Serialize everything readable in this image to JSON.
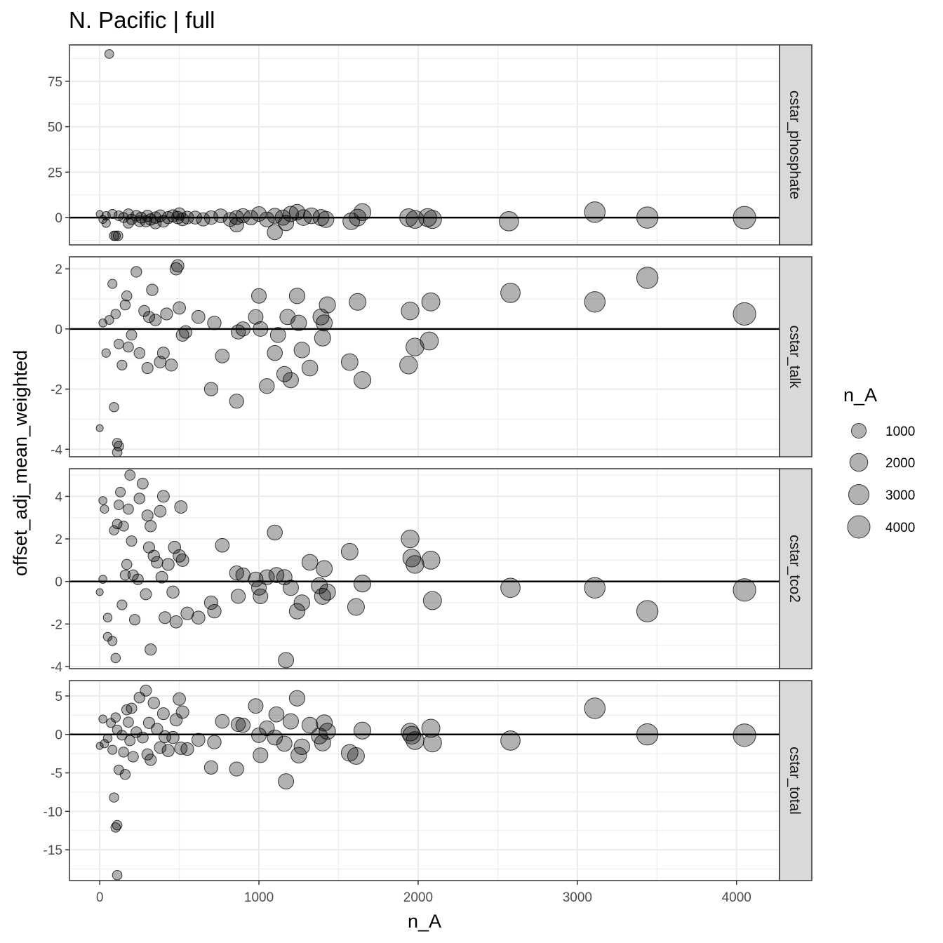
{
  "chart_data": {
    "type": "scatter",
    "title": "N. Pacific | full",
    "xlabel": "n_A",
    "ylabel": "offset_adj_mean_weighted",
    "xlim": [
      -190,
      4270
    ],
    "x_ticks": [
      0,
      1000,
      2000,
      3000,
      4000
    ],
    "grid": true,
    "size_variable": "n_A",
    "point_color": "#000000",
    "point_opacity": 0.3,
    "reference_line_y": 0,
    "legend": {
      "title": "n_A",
      "position": "right",
      "values": [
        1000,
        2000,
        3000,
        4000
      ]
    },
    "panels": [
      {
        "name": "cstar_phosphate",
        "ylim": [
          -15,
          95
        ],
        "y_ticks": [
          0,
          25,
          50,
          75
        ],
        "points": [
          [
            60,
            90
          ],
          [
            0,
            2
          ],
          [
            20,
            -1
          ],
          [
            40,
            1
          ],
          [
            80,
            2
          ],
          [
            120,
            1
          ],
          [
            150,
            0
          ],
          [
            180,
            2
          ],
          [
            200,
            -1
          ],
          [
            230,
            1
          ],
          [
            260,
            0
          ],
          [
            290,
            -2
          ],
          [
            300,
            1
          ],
          [
            320,
            -1
          ],
          [
            350,
            0
          ],
          [
            380,
            1
          ],
          [
            400,
            -2
          ],
          [
            430,
            0
          ],
          [
            460,
            1
          ],
          [
            490,
            0
          ],
          [
            500,
            2
          ],
          [
            520,
            -1
          ],
          [
            550,
            0
          ],
          [
            600,
            0
          ],
          [
            650,
            -1
          ],
          [
            700,
            0
          ],
          [
            760,
            1
          ],
          [
            820,
            -1
          ],
          [
            860,
            0
          ],
          [
            900,
            1
          ],
          [
            950,
            0
          ],
          [
            1000,
            2
          ],
          [
            1050,
            -1
          ],
          [
            1100,
            1
          ],
          [
            1150,
            0
          ],
          [
            1200,
            2
          ],
          [
            1240,
            3
          ],
          [
            1280,
            0
          ],
          [
            1330,
            1
          ],
          [
            1390,
            0
          ],
          [
            1420,
            -1
          ],
          [
            1580,
            -2
          ],
          [
            1620,
            0
          ],
          [
            1650,
            3
          ],
          [
            1940,
            0
          ],
          [
            1980,
            -1
          ],
          [
            2060,
            0
          ],
          [
            2090,
            -1
          ],
          [
            2570,
            -2
          ],
          [
            3110,
            3
          ],
          [
            3440,
            0
          ],
          [
            4050,
            0
          ],
          [
            100,
            -10
          ],
          [
            115,
            -10
          ],
          [
            90,
            -10
          ],
          [
            860,
            -4
          ],
          [
            1100,
            -8
          ],
          [
            1170,
            -3
          ],
          [
            40,
            -3
          ],
          [
            180,
            -3
          ],
          [
            250,
            -2
          ],
          [
            350,
            -3
          ]
        ]
      },
      {
        "name": "cstar_talk",
        "ylim": [
          -4.25,
          2.4
        ],
        "y_ticks": [
          -4,
          -2,
          0,
          2
        ],
        "points": [
          [
            0,
            -3.3
          ],
          [
            110,
            -3.8
          ],
          [
            120,
            -3.9
          ],
          [
            110,
            -4.1
          ],
          [
            90,
            -2.6
          ],
          [
            20,
            0.2
          ],
          [
            40,
            -0.8
          ],
          [
            60,
            0.3
          ],
          [
            80,
            1.5
          ],
          [
            100,
            0.5
          ],
          [
            120,
            -0.5
          ],
          [
            140,
            -1.2
          ],
          [
            160,
            0.8
          ],
          [
            170,
            1.1
          ],
          [
            180,
            -0.6
          ],
          [
            200,
            -0.2
          ],
          [
            230,
            1.9
          ],
          [
            250,
            -0.8
          ],
          [
            280,
            0.6
          ],
          [
            300,
            -1.3
          ],
          [
            310,
            0.4
          ],
          [
            330,
            1.3
          ],
          [
            350,
            0.3
          ],
          [
            380,
            -1.1
          ],
          [
            400,
            -0.8
          ],
          [
            420,
            0.5
          ],
          [
            450,
            -1.2
          ],
          [
            480,
            2.0
          ],
          [
            490,
            2.1
          ],
          [
            500,
            0.7
          ],
          [
            520,
            -0.2
          ],
          [
            540,
            -0.1
          ],
          [
            620,
            0.4
          ],
          [
            700,
            -2.0
          ],
          [
            720,
            0.2
          ],
          [
            770,
            -0.9
          ],
          [
            860,
            -2.4
          ],
          [
            870,
            -0.1
          ],
          [
            900,
            0.0
          ],
          [
            980,
            0.4
          ],
          [
            1000,
            1.1
          ],
          [
            1010,
            0.0
          ],
          [
            1050,
            -1.9
          ],
          [
            1100,
            -0.8
          ],
          [
            1120,
            -0.2
          ],
          [
            1160,
            -1.5
          ],
          [
            1180,
            0.4
          ],
          [
            1200,
            -1.7
          ],
          [
            1240,
            1.1
          ],
          [
            1250,
            0.2
          ],
          [
            1270,
            -0.7
          ],
          [
            1320,
            -1.3
          ],
          [
            1390,
            0.4
          ],
          [
            1400,
            -0.3
          ],
          [
            1410,
            0.2
          ],
          [
            1430,
            0.8
          ],
          [
            1570,
            -1.1
          ],
          [
            1620,
            0.9
          ],
          [
            1650,
            -1.7
          ],
          [
            1950,
            0.6
          ],
          [
            1940,
            -1.2
          ],
          [
            1980,
            -0.6
          ],
          [
            2080,
            0.9
          ],
          [
            2070,
            -0.4
          ],
          [
            2580,
            1.2
          ],
          [
            3110,
            0.9
          ],
          [
            3440,
            1.7
          ],
          [
            4050,
            0.5
          ]
        ]
      },
      {
        "name": "cstar_tco2",
        "ylim": [
          -4.1,
          5.3
        ],
        "y_ticks": [
          -4,
          -2,
          0,
          2,
          4
        ],
        "points": [
          [
            0,
            -0.5
          ],
          [
            20,
            3.8
          ],
          [
            30,
            3.4
          ],
          [
            20,
            0.1
          ],
          [
            50,
            -1.7
          ],
          [
            50,
            -2.6
          ],
          [
            80,
            -2.8
          ],
          [
            90,
            2.4
          ],
          [
            100,
            -3.6
          ],
          [
            110,
            2.7
          ],
          [
            120,
            3.6
          ],
          [
            130,
            4.2
          ],
          [
            140,
            -1.1
          ],
          [
            150,
            2.6
          ],
          [
            160,
            0.3
          ],
          [
            170,
            0.8
          ],
          [
            180,
            3.4
          ],
          [
            190,
            5.0
          ],
          [
            200,
            1.9
          ],
          [
            210,
            0.3
          ],
          [
            220,
            -1.8
          ],
          [
            240,
            0.1
          ],
          [
            250,
            3.9
          ],
          [
            270,
            4.6
          ],
          [
            290,
            -0.6
          ],
          [
            300,
            3.1
          ],
          [
            310,
            1.6
          ],
          [
            320,
            2.6
          ],
          [
            320,
            -3.2
          ],
          [
            340,
            1.2
          ],
          [
            360,
            0.9
          ],
          [
            380,
            3.3
          ],
          [
            390,
            0.2
          ],
          [
            400,
            4.0
          ],
          [
            410,
            -1.7
          ],
          [
            430,
            0.8
          ],
          [
            460,
            -0.5
          ],
          [
            470,
            1.6
          ],
          [
            480,
            -1.9
          ],
          [
            500,
            1.2
          ],
          [
            510,
            3.5
          ],
          [
            520,
            1.0
          ],
          [
            550,
            -1.5
          ],
          [
            620,
            -1.7
          ],
          [
            700,
            -1.0
          ],
          [
            720,
            -1.4
          ],
          [
            770,
            1.7
          ],
          [
            860,
            0.4
          ],
          [
            870,
            -0.7
          ],
          [
            900,
            0.3
          ],
          [
            980,
            0.1
          ],
          [
            1000,
            -0.3
          ],
          [
            1010,
            -0.7
          ],
          [
            1050,
            0.2
          ],
          [
            1100,
            2.3
          ],
          [
            1110,
            0.3
          ],
          [
            1160,
            0.2
          ],
          [
            1170,
            -3.7
          ],
          [
            1200,
            -0.3
          ],
          [
            1240,
            -1.4
          ],
          [
            1270,
            -1.0
          ],
          [
            1320,
            0.9
          ],
          [
            1380,
            -0.2
          ],
          [
            1400,
            -0.7
          ],
          [
            1410,
            0.6
          ],
          [
            1430,
            -0.5
          ],
          [
            1570,
            1.4
          ],
          [
            1610,
            -1.2
          ],
          [
            1650,
            -0.1
          ],
          [
            1950,
            2.0
          ],
          [
            1960,
            1.1
          ],
          [
            1980,
            0.8
          ],
          [
            2080,
            1.0
          ],
          [
            2090,
            -0.9
          ],
          [
            2580,
            -0.3
          ],
          [
            3110,
            -0.3
          ],
          [
            3440,
            -1.4
          ],
          [
            4050,
            -0.4
          ]
        ]
      },
      {
        "name": "cstar_total",
        "ylim": [
          -19,
          7
        ],
        "y_ticks": [
          -15,
          -10,
          -5,
          0,
          5
        ],
        "points": [
          [
            110,
            -18.3
          ],
          [
            100,
            -12.1
          ],
          [
            110,
            -11.8
          ],
          [
            90,
            -8.2
          ],
          [
            0,
            -1.5
          ],
          [
            20,
            2.0
          ],
          [
            30,
            -1.2
          ],
          [
            50,
            -0.5
          ],
          [
            70,
            1.5
          ],
          [
            80,
            -2.0
          ],
          [
            100,
            2.2
          ],
          [
            110,
            0.6
          ],
          [
            120,
            -4.6
          ],
          [
            140,
            -0.1
          ],
          [
            150,
            -2.3
          ],
          [
            160,
            -5.2
          ],
          [
            170,
            3.2
          ],
          [
            180,
            1.6
          ],
          [
            190,
            -0.8
          ],
          [
            200,
            3.4
          ],
          [
            210,
            -2.9
          ],
          [
            230,
            0.3
          ],
          [
            250,
            4.8
          ],
          [
            270,
            -0.4
          ],
          [
            290,
            5.7
          ],
          [
            300,
            -2.6
          ],
          [
            310,
            1.5
          ],
          [
            320,
            -3.3
          ],
          [
            340,
            4.1
          ],
          [
            360,
            0.7
          ],
          [
            380,
            -1.7
          ],
          [
            400,
            2.7
          ],
          [
            410,
            -0.3
          ],
          [
            430,
            -2.1
          ],
          [
            460,
            -0.4
          ],
          [
            480,
            1.9
          ],
          [
            500,
            4.6
          ],
          [
            510,
            -1.8
          ],
          [
            520,
            2.9
          ],
          [
            550,
            -1.9
          ],
          [
            620,
            -0.7
          ],
          [
            700,
            -4.3
          ],
          [
            720,
            -1.0
          ],
          [
            770,
            1.7
          ],
          [
            860,
            -4.5
          ],
          [
            870,
            1.3
          ],
          [
            900,
            1.2
          ],
          [
            980,
            3.7
          ],
          [
            1000,
            -0.1
          ],
          [
            1010,
            -2.7
          ],
          [
            1050,
            0.8
          ],
          [
            1100,
            -0.4
          ],
          [
            1110,
            2.6
          ],
          [
            1160,
            -1.2
          ],
          [
            1170,
            -6.1
          ],
          [
            1200,
            1.7
          ],
          [
            1240,
            4.7
          ],
          [
            1250,
            -2.7
          ],
          [
            1270,
            -1.6
          ],
          [
            1320,
            1.2
          ],
          [
            1380,
            -0.2
          ],
          [
            1400,
            -1.1
          ],
          [
            1410,
            1.5
          ],
          [
            1430,
            0.4
          ],
          [
            1570,
            -2.4
          ],
          [
            1610,
            -2.8
          ],
          [
            1650,
            0.5
          ],
          [
            1950,
            0.3
          ],
          [
            1960,
            -0.1
          ],
          [
            1980,
            -0.8
          ],
          [
            2080,
            0.8
          ],
          [
            2090,
            -1.1
          ],
          [
            2580,
            -0.8
          ],
          [
            3110,
            3.4
          ],
          [
            3440,
            0.0
          ],
          [
            4050,
            -0.1
          ]
        ]
      }
    ]
  }
}
